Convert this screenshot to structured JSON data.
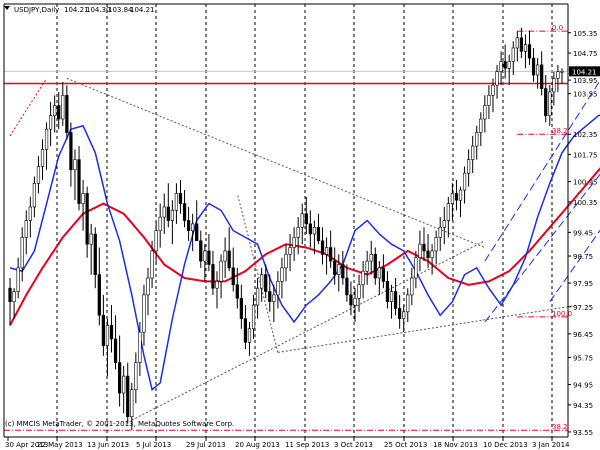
{
  "header": {
    "symbol": "USDJPY,Daily",
    "open": "104.21",
    "high": "104.30",
    "low": "103.84",
    "close": "104.21"
  },
  "copyright": "(c) MMCIS MetaTrader, © 2001-2013, MetaQuotes Software Corp.",
  "chart_data": {
    "type": "candlestick",
    "instrument": "USDJPY",
    "timeframe": "Daily",
    "ylim": [
      93.4,
      106.2
    ],
    "y_ticks": [
      105.35,
      104.75,
      103.95,
      103.55,
      102.35,
      101.75,
      100.95,
      100.35,
      99.45,
      98.75,
      97.95,
      97.25,
      96.45,
      95.75,
      94.95,
      94.35,
      93.55
    ],
    "x_ticks": [
      "30 Apr 2013",
      "22 May 2013",
      "13 Jun 2013",
      "5 Jul 2013",
      "29 Jul 2013",
      "20 Aug 2013",
      "11 Sep 2013",
      "3 Oct 2013",
      "25 Oct 2013",
      "18 Nov 2013",
      "10 Dec 2013",
      "3 Jan 2014"
    ],
    "current_price": "104.21",
    "fibonacci_levels": [
      {
        "label": "0.0",
        "price": 105.4
      },
      {
        "label": "38.2",
        "price": 102.35
      },
      {
        "label": "100.0",
        "price": 96.95
      },
      {
        "label": "38.2",
        "price": 93.6
      }
    ],
    "horizontal_line": {
      "price": 103.85,
      "color": "#e8001c"
    },
    "candle_colors": {
      "up": "#ffffff",
      "down": "#000000",
      "wick": "#000000"
    },
    "moving_averages": [
      {
        "color": "#e8001c",
        "points": [
          [
            0,
            96.7
          ],
          [
            4,
            97.6
          ],
          [
            8,
            98.4
          ],
          [
            13,
            99.3
          ],
          [
            18,
            100.0
          ],
          [
            23,
            100.3
          ],
          [
            28,
            100.0
          ],
          [
            33,
            99.3
          ],
          [
            38,
            98.5
          ],
          [
            43,
            98.1
          ],
          [
            48,
            98.0
          ],
          [
            53,
            98.0
          ],
          [
            58,
            98.3
          ],
          [
            63,
            98.8
          ],
          [
            68,
            99.1
          ],
          [
            73,
            99.0
          ],
          [
            78,
            98.8
          ],
          [
            83,
            98.4
          ],
          [
            88,
            98.2
          ],
          [
            93,
            98.5
          ],
          [
            98,
            98.9
          ],
          [
            103,
            98.6
          ],
          [
            108,
            98.1
          ],
          [
            113,
            97.9
          ],
          [
            118,
            98.0
          ],
          [
            123,
            98.3
          ],
          [
            128,
            98.9
          ],
          [
            133,
            99.6
          ],
          [
            138,
            100.3
          ],
          [
            143,
            101.0
          ],
          [
            148,
            101.7
          ],
          [
            153,
            102.3
          ],
          [
            158,
            102.9
          ],
          [
            163,
            103.5
          ],
          [
            168,
            103.9
          ],
          [
            172,
            104.2
          ]
        ]
      },
      {
        "color": "#1a2ee8",
        "points": [
          [
            0,
            98.4
          ],
          [
            3,
            98.3
          ],
          [
            6,
            98.9
          ],
          [
            9,
            100.3
          ],
          [
            12,
            101.7
          ],
          [
            15,
            102.5
          ],
          [
            18,
            102.6
          ],
          [
            21,
            101.8
          ],
          [
            24,
            100.3
          ],
          [
            27,
            99.2
          ],
          [
            30,
            97.6
          ],
          [
            33,
            95.8
          ],
          [
            35,
            94.8
          ],
          [
            37,
            95.0
          ],
          [
            40,
            96.9
          ],
          [
            43,
            98.5
          ],
          [
            46,
            99.8
          ],
          [
            49,
            100.3
          ],
          [
            52,
            100.1
          ],
          [
            55,
            99.5
          ],
          [
            58,
            99.3
          ],
          [
            61,
            99.1
          ],
          [
            64,
            98.1
          ],
          [
            67,
            97.3
          ],
          [
            70,
            96.8
          ],
          [
            73,
            97.3
          ],
          [
            76,
            97.6
          ],
          [
            79,
            98.0
          ],
          [
            82,
            98.5
          ],
          [
            85,
            99.5
          ],
          [
            88,
            99.8
          ],
          [
            91,
            99.4
          ],
          [
            94,
            99.1
          ],
          [
            97,
            98.9
          ],
          [
            100,
            98.3
          ],
          [
            103,
            97.6
          ],
          [
            106,
            97.0
          ],
          [
            109,
            97.4
          ],
          [
            112,
            98.2
          ],
          [
            115,
            98.4
          ],
          [
            118,
            97.8
          ],
          [
            121,
            97.3
          ],
          [
            124,
            97.9
          ],
          [
            127,
            98.7
          ],
          [
            130,
            99.9
          ],
          [
            133,
            100.9
          ],
          [
            136,
            101.8
          ],
          [
            139,
            102.3
          ],
          [
            142,
            102.6
          ],
          [
            145,
            102.9
          ],
          [
            148,
            103.0
          ],
          [
            151,
            103.5
          ],
          [
            154,
            104.0
          ],
          [
            157,
            104.6
          ],
          [
            160,
            104.8
          ],
          [
            163,
            104.8
          ],
          [
            166,
            104.5
          ],
          [
            169,
            104.4
          ],
          [
            172,
            104.3
          ]
        ]
      }
    ],
    "trend_lines": [
      {
        "style": "dotted",
        "color": "#555555",
        "points": [
          [
            14,
            104.0
          ],
          [
            117,
            99.0
          ]
        ]
      },
      {
        "style": "dotted",
        "color": "#555555",
        "points": [
          [
            30,
            93.9
          ],
          [
            117,
            99.2
          ]
        ]
      },
      {
        "style": "dotted",
        "color": "#555555",
        "points": [
          [
            66,
            95.9
          ],
          [
            140,
            97.3
          ]
        ]
      },
      {
        "style": "dotted",
        "color": "#555555",
        "points": [
          [
            66,
            95.9
          ],
          [
            56,
            100.6
          ]
        ]
      },
      {
        "style": "dashed",
        "color": "#1a2ee8",
        "points": [
          [
            117,
            98.6
          ],
          [
            159,
            106.5
          ]
        ]
      },
      {
        "style": "dashed",
        "color": "#1a2ee8",
        "points": [
          [
            117,
            96.8
          ],
          [
            169,
            104.8
          ]
        ]
      },
      {
        "style": "dashed",
        "color": "#1a2ee8",
        "points": [
          [
            133,
            97.4
          ],
          [
            170,
            103.7
          ]
        ]
      },
      {
        "style": "dotted",
        "color": "#e8001c",
        "points": [
          [
            0,
            102.3
          ],
          [
            9,
            104.0
          ]
        ]
      }
    ],
    "candles": [
      [
        97.8,
        98.1,
        96.7,
        97.4
      ],
      [
        97.4,
        97.8,
        96.9,
        97.7
      ],
      [
        97.7,
        98.7,
        97.5,
        98.4
      ],
      [
        98.4,
        99.6,
        98.0,
        99.3
      ],
      [
        99.3,
        100.1,
        98.8,
        99.8
      ],
      [
        99.8,
        100.5,
        99.3,
        100.2
      ],
      [
        100.2,
        101.1,
        99.9,
        100.9
      ],
      [
        100.9,
        101.7,
        100.6,
        101.4
      ],
      [
        101.4,
        102.2,
        101.0,
        101.9
      ],
      [
        101.9,
        102.7,
        101.3,
        102.5
      ],
      [
        102.5,
        103.3,
        102.0,
        102.9
      ],
      [
        102.9,
        103.5,
        102.4,
        103.2
      ],
      [
        103.2,
        103.6,
        102.5,
        102.8
      ],
      [
        102.8,
        103.9,
        102.6,
        103.5
      ],
      [
        103.5,
        103.8,
        102.2,
        102.4
      ],
      [
        102.4,
        102.7,
        100.8,
        101.3
      ],
      [
        101.3,
        101.9,
        100.4,
        101.6
      ],
      [
        101.6,
        102.0,
        100.1,
        100.3
      ],
      [
        100.3,
        101.0,
        99.5,
        100.6
      ],
      [
        100.6,
        100.8,
        98.7,
        99.1
      ],
      [
        99.1,
        99.7,
        98.2,
        99.4
      ],
      [
        99.4,
        99.6,
        97.8,
        98.2
      ],
      [
        98.2,
        99.0,
        96.7,
        97.0
      ],
      [
        97.0,
        97.6,
        95.8,
        96.1
      ],
      [
        96.1,
        96.9,
        95.2,
        96.7
      ],
      [
        96.7,
        97.3,
        95.9,
        96.3
      ],
      [
        96.3,
        97.0,
        95.4,
        95.6
      ],
      [
        95.6,
        96.4,
        94.3,
        94.7
      ],
      [
        94.7,
        95.5,
        94.1,
        95.2
      ],
      [
        95.2,
        95.6,
        93.8,
        94.0
      ],
      [
        94.0,
        95.0,
        93.6,
        94.8
      ],
      [
        94.8,
        95.9,
        94.4,
        95.6
      ],
      [
        95.6,
        96.8,
        95.2,
        96.5
      ],
      [
        96.5,
        97.9,
        96.1,
        97.6
      ],
      [
        97.6,
        98.4,
        97.0,
        98.1
      ],
      [
        98.1,
        99.2,
        97.8,
        98.9
      ],
      [
        98.9,
        99.8,
        98.5,
        99.5
      ],
      [
        99.5,
        100.3,
        99.0,
        99.9
      ],
      [
        99.9,
        100.6,
        99.4,
        100.2
      ],
      [
        100.2,
        100.9,
        99.6,
        99.8
      ],
      [
        99.8,
        100.4,
        99.1,
        100.1
      ],
      [
        100.1,
        100.9,
        99.7,
        100.6
      ],
      [
        100.6,
        101.0,
        100.0,
        100.3
      ],
      [
        100.3,
        100.7,
        99.6,
        99.8
      ],
      [
        99.8,
        100.2,
        99.2,
        99.5
      ],
      [
        99.5,
        100.0,
        98.9,
        99.7
      ],
      [
        99.7,
        100.4,
        99.3,
        99.2
      ],
      [
        99.2,
        99.5,
        98.4,
        98.6
      ],
      [
        98.6,
        99.1,
        98.0,
        98.9
      ],
      [
        98.9,
        99.4,
        98.3,
        98.5
      ],
      [
        98.5,
        98.9,
        97.6,
        97.8
      ],
      [
        97.8,
        98.3,
        97.2,
        98.0
      ],
      [
        98.0,
        98.8,
        97.5,
        98.6
      ],
      [
        98.6,
        99.3,
        98.1,
        98.9
      ],
      [
        98.9,
        99.6,
        98.3,
        98.4
      ],
      [
        98.4,
        99.0,
        97.7,
        97.9
      ],
      [
        97.9,
        98.4,
        97.2,
        97.5
      ],
      [
        97.5,
        97.9,
        96.6,
        96.9
      ],
      [
        96.9,
        97.3,
        96.0,
        96.2
      ],
      [
        96.2,
        96.8,
        95.8,
        96.6
      ],
      [
        96.6,
        97.6,
        96.3,
        97.3
      ],
      [
        97.3,
        98.1,
        96.9,
        97.8
      ],
      [
        97.8,
        98.4,
        97.4,
        98.2
      ],
      [
        98.2,
        98.5,
        97.5,
        97.7
      ],
      [
        97.7,
        98.2,
        97.1,
        97.4
      ],
      [
        97.4,
        97.9,
        96.8,
        97.6
      ],
      [
        97.6,
        98.3,
        97.2,
        98.0
      ],
      [
        98.0,
        98.7,
        97.5,
        98.4
      ],
      [
        98.4,
        99.1,
        98.0,
        98.8
      ],
      [
        98.8,
        99.4,
        98.3,
        99.0
      ],
      [
        99.0,
        99.6,
        98.6,
        99.3
      ],
      [
        99.3,
        99.9,
        98.8,
        99.6
      ],
      [
        99.6,
        100.3,
        99.1,
        100.0
      ],
      [
        100.0,
        100.5,
        99.4,
        99.7
      ],
      [
        99.7,
        100.1,
        99.0,
        99.4
      ],
      [
        99.4,
        99.8,
        98.8,
        99.6
      ],
      [
        99.6,
        100.0,
        99.1,
        99.2
      ],
      [
        99.2,
        99.6,
        98.5,
        98.8
      ],
      [
        98.8,
        99.3,
        98.2,
        99.0
      ],
      [
        99.0,
        99.5,
        98.4,
        98.6
      ],
      [
        98.6,
        99.0,
        97.9,
        98.2
      ],
      [
        98.2,
        98.8,
        97.7,
        98.5
      ],
      [
        98.5,
        98.9,
        97.9,
        98.1
      ],
      [
        98.1,
        98.5,
        97.4,
        97.6
      ],
      [
        97.6,
        98.0,
        97.0,
        97.3
      ],
      [
        97.3,
        97.8,
        96.8,
        97.5
      ],
      [
        97.5,
        98.2,
        97.1,
        97.9
      ],
      [
        97.9,
        98.6,
        97.5,
        98.3
      ],
      [
        98.3,
        98.9,
        97.9,
        98.6
      ],
      [
        98.6,
        99.2,
        98.2,
        98.8
      ],
      [
        98.8,
        99.0,
        97.9,
        98.1
      ],
      [
        98.1,
        98.6,
        97.6,
        98.4
      ],
      [
        98.4,
        98.8,
        97.8,
        98.0
      ],
      [
        98.0,
        98.3,
        97.2,
        97.4
      ],
      [
        97.4,
        97.9,
        96.9,
        97.7
      ],
      [
        97.7,
        98.1,
        97.0,
        97.2
      ],
      [
        97.2,
        97.6,
        96.6,
        96.9
      ],
      [
        96.9,
        97.3,
        96.5,
        97.1
      ],
      [
        97.1,
        97.8,
        96.8,
        97.6
      ],
      [
        97.6,
        98.4,
        97.3,
        98.1
      ],
      [
        98.1,
        98.9,
        97.8,
        98.7
      ],
      [
        98.7,
        99.5,
        98.3,
        99.1
      ],
      [
        99.1,
        99.6,
        98.6,
        98.9
      ],
      [
        98.9,
        99.4,
        98.4,
        98.7
      ],
      [
        98.7,
        99.1,
        98.2,
        98.9
      ],
      [
        98.9,
        99.5,
        98.5,
        99.3
      ],
      [
        99.3,
        99.9,
        98.9,
        99.6
      ],
      [
        99.6,
        100.2,
        99.1,
        99.8
      ],
      [
        99.8,
        100.5,
        99.3,
        100.3
      ],
      [
        100.3,
        100.9,
        99.8,
        100.6
      ],
      [
        100.6,
        101.0,
        100.1,
        100.4
      ],
      [
        100.4,
        100.8,
        99.9,
        100.7
      ],
      [
        100.7,
        101.4,
        100.3,
        101.2
      ],
      [
        101.2,
        101.9,
        100.8,
        101.6
      ],
      [
        101.6,
        102.3,
        101.2,
        102.0
      ],
      [
        102.0,
        102.6,
        101.6,
        102.4
      ],
      [
        102.4,
        103.0,
        102.0,
        102.8
      ],
      [
        102.8,
        103.5,
        102.4,
        103.2
      ],
      [
        103.2,
        103.8,
        102.8,
        103.5
      ],
      [
        103.5,
        104.0,
        103.0,
        103.8
      ],
      [
        103.8,
        104.4,
        103.4,
        104.2
      ],
      [
        104.2,
        104.8,
        103.8,
        104.5
      ],
      [
        104.5,
        105.0,
        104.0,
        104.3
      ],
      [
        104.3,
        104.7,
        103.8,
        104.5
      ],
      [
        104.5,
        105.1,
        104.1,
        104.9
      ],
      [
        104.9,
        105.4,
        104.5,
        105.2
      ],
      [
        105.2,
        105.5,
        104.6,
        104.8
      ],
      [
        104.8,
        105.3,
        104.3,
        105.0
      ],
      [
        105.0,
        105.4,
        104.4,
        104.6
      ],
      [
        104.6,
        104.9,
        103.9,
        104.1
      ],
      [
        104.1,
        104.6,
        103.7,
        104.4
      ],
      [
        104.4,
        104.8,
        103.5,
        103.7
      ],
      [
        103.7,
        104.1,
        102.7,
        102.9
      ],
      [
        102.9,
        103.8,
        102.6,
        103.6
      ],
      [
        103.6,
        104.2,
        103.2,
        104.0
      ],
      [
        104.0,
        104.4,
        103.6,
        104.2
      ],
      [
        104.2,
        104.3,
        103.84,
        104.21
      ]
    ]
  }
}
